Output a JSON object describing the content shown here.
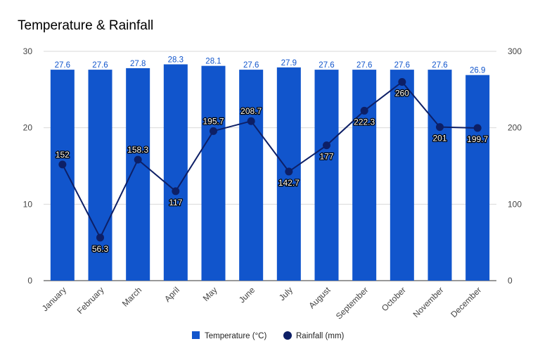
{
  "chart_data": {
    "type": "bar+line",
    "title": "Temperature & Rainfall",
    "categories": [
      "January",
      "February",
      "March",
      "April",
      "May",
      "June",
      "July",
      "August",
      "September",
      "October",
      "November",
      "December"
    ],
    "series": [
      {
        "name": "Temperature (°C)",
        "type": "bar",
        "axis": "left",
        "values": [
          27.6,
          27.6,
          27.8,
          28.3,
          28.1,
          27.6,
          27.9,
          27.6,
          27.6,
          27.6,
          27.6,
          26.9
        ],
        "labels": [
          "27.6",
          "27.6",
          "27.8",
          "28.3",
          "28.1",
          "27.6",
          "27.9",
          "27.6",
          "27.6",
          "27.6",
          "27.6",
          "26.9"
        ],
        "color": "#1155cc"
      },
      {
        "name": "Rainfall (mm)",
        "type": "line",
        "axis": "right",
        "values": [
          152,
          56.3,
          158.3,
          117,
          195.7,
          208.7,
          142.7,
          177,
          222.3,
          260,
          201,
          199.7
        ],
        "labels": [
          "152",
          "56.3",
          "158.3",
          "117",
          "195.7",
          "208.7",
          "142.7",
          "177",
          "222.3",
          "260",
          "201",
          "199.7"
        ],
        "color": "#0d1f66"
      }
    ],
    "y_left": {
      "ylim": [
        0,
        30
      ],
      "ticks": [
        "0",
        "10",
        "20",
        "30"
      ]
    },
    "y_right": {
      "ylim": [
        0,
        300
      ],
      "ticks": [
        "0",
        "100",
        "200",
        "300"
      ]
    },
    "grid": true,
    "legend_position": "bottom"
  }
}
